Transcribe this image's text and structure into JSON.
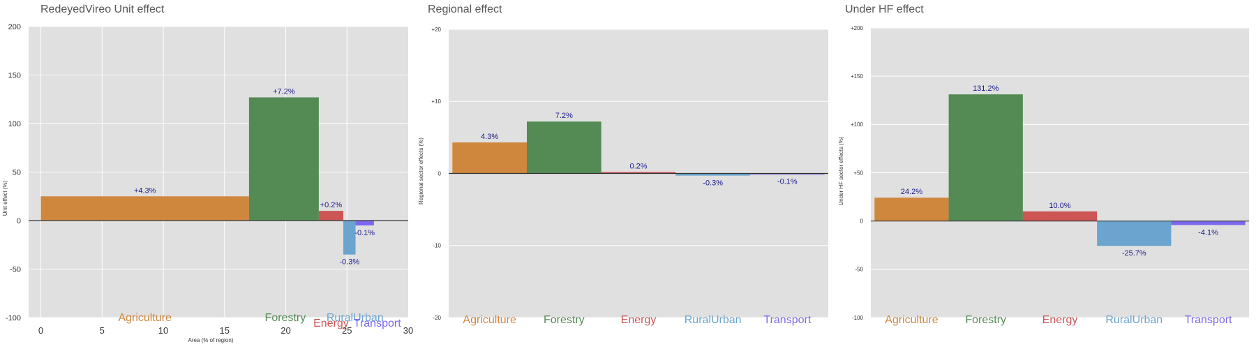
{
  "colors": {
    "panel_bg": "#e0e0e0",
    "grid": "#ffffff",
    "zero_line": "#333333",
    "label_text": "#1a1a8c",
    "Agriculture": "#cf873e",
    "Forestry": "#548b54",
    "Energy": "#cc5555",
    "RuralUrban": "#6aa4cf",
    "Transport": "#7b68ee"
  },
  "chart_data": [
    {
      "type": "bar",
      "title": "RedeyedVireo Unit effect",
      "xlabel": "Area (% of region)",
      "ylabel": "Unit effect (%)",
      "ylim": [
        -100,
        200
      ],
      "yticks": [
        -100,
        -50,
        0,
        50,
        100,
        150,
        200
      ],
      "ytick_labels": [
        "-100",
        "-50",
        "0",
        "50",
        "100",
        "150",
        "200"
      ],
      "xlim": [
        -1,
        30
      ],
      "xticks": [
        0,
        5,
        10,
        15,
        20,
        25,
        30
      ],
      "xtick_labels": [
        "0",
        "5",
        "10",
        "15",
        "20",
        "25",
        "30"
      ],
      "grid": true,
      "categories": [
        "Agriculture",
        "Forestry",
        "Energy",
        "RuralUrban",
        "Transport"
      ],
      "bars": [
        {
          "category": "Agriculture",
          "x0": 0,
          "x1": 17,
          "value": 25,
          "label": "+4.3%"
        },
        {
          "category": "Forestry",
          "x0": 17,
          "x1": 22.7,
          "value": 127,
          "label": "+7.2%"
        },
        {
          "category": "Energy",
          "x0": 22.7,
          "x1": 24.7,
          "value": 10,
          "label": "+0.2%"
        },
        {
          "category": "RuralUrban",
          "x0": 24.7,
          "x1": 25.7,
          "value": -35,
          "label": "-0.3%"
        },
        {
          "category": "Transport",
          "x0": 25.7,
          "x1": 27.2,
          "value": -5,
          "label": "-0.1%"
        }
      ]
    },
    {
      "type": "bar",
      "title": "Regional effect",
      "ylabel": "Regional sector effects (%)",
      "ylim": [
        -20,
        20
      ],
      "yticks": [
        -20,
        -10,
        0,
        10,
        20
      ],
      "ytick_labels": [
        "-20",
        "-10",
        "0",
        "+10",
        "+20"
      ],
      "grid": true,
      "categories": [
        "Agriculture",
        "Forestry",
        "Energy",
        "RuralUrban",
        "Transport"
      ],
      "values": [
        4.3,
        7.2,
        0.2,
        -0.3,
        -0.1
      ],
      "labels": [
        "4.3%",
        "7.2%",
        "0.2%",
        "-0.3%",
        "-0.1%"
      ]
    },
    {
      "type": "bar",
      "title": "Under HF effect",
      "ylabel": "Under HF sector effects (%)",
      "ylim": [
        -100,
        200
      ],
      "yticks": [
        -100,
        -50,
        0,
        50,
        100,
        150,
        200
      ],
      "ytick_labels": [
        "-100",
        "-50",
        "0",
        "+50",
        "+100",
        "+150",
        "+200"
      ],
      "grid": true,
      "categories": [
        "Agriculture",
        "Forestry",
        "Energy",
        "RuralUrban",
        "Transport"
      ],
      "values": [
        24.2,
        131.2,
        10.0,
        -25.7,
        -4.1
      ],
      "labels": [
        "24.2%",
        "131.2%",
        "10.0%",
        "-25.7%",
        "-4.1%"
      ]
    }
  ]
}
